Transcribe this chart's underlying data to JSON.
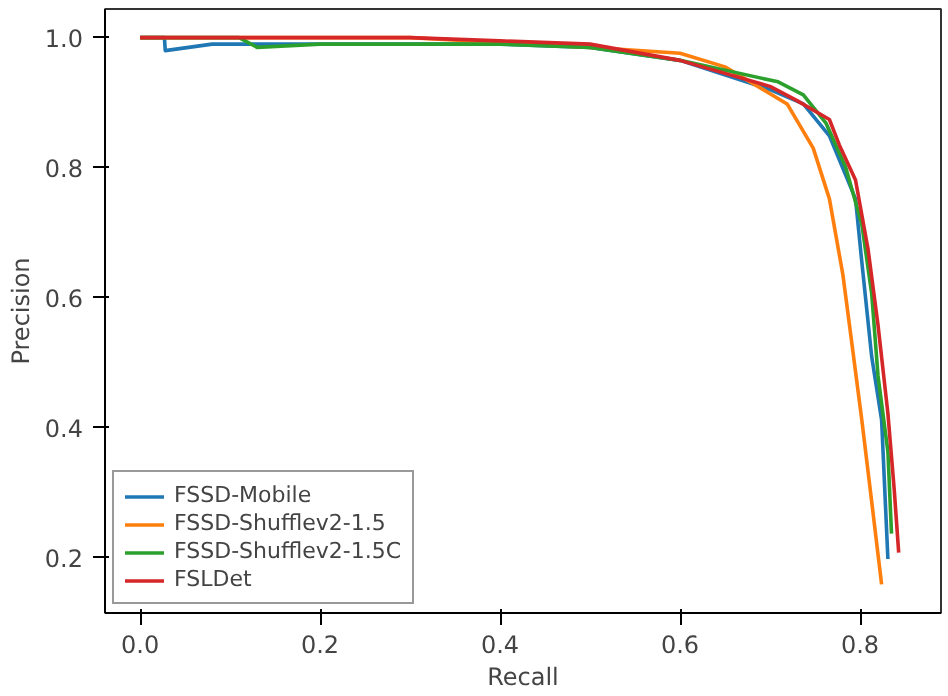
{
  "chart_data": {
    "type": "line",
    "xlabel": "Recall",
    "ylabel": "Precision",
    "xlim": [
      -0.039,
      0.89
    ],
    "ylim": [
      0.115,
      1.044
    ],
    "xticks": [
      {
        "value": 0,
        "label": "0.0"
      },
      0.2,
      0.4,
      0.6,
      0.8
    ],
    "yticks": [
      0.2,
      0.4,
      0.6,
      0.8,
      {
        "value": 1,
        "label": "1.0"
      }
    ],
    "grid": false,
    "legend": "bottom left",
    "line_style": "solid",
    "series": [
      {
        "name": "FSSD-Mobile",
        "color": "#1f77b4",
        "x": [
          0,
          0.027,
          0.028,
          0.08,
          0.1,
          0.2,
          0.4,
          0.5,
          0.6,
          0.7,
          0.737,
          0.766,
          0.795,
          0.802,
          0.813,
          0.824,
          0.831
        ],
        "values": [
          1.0,
          1.0,
          0.98,
          0.99,
          0.99,
          0.99,
          0.99,
          0.985,
          0.965,
          0.92,
          0.898,
          0.849,
          0.752,
          0.655,
          0.509,
          0.412,
          0.198
        ]
      },
      {
        "name": "FSSD-Shufflev2-1.5",
        "color": "#ff7f0e",
        "x": [
          0,
          0.3,
          0.5,
          0.6,
          0.65,
          0.719,
          0.748,
          0.766,
          0.781,
          0.791,
          0.802,
          0.813,
          0.824
        ],
        "values": [
          1.0,
          1.0,
          0.985,
          0.976,
          0.955,
          0.898,
          0.83,
          0.752,
          0.635,
          0.529,
          0.412,
          0.286,
          0.159
        ]
      },
      {
        "name": "FSSD-Shufflev2-1.5C",
        "color": "#2ca02c",
        "x": [
          0,
          0.11,
          0.13,
          0.2,
          0.4,
          0.5,
          0.6,
          0.709,
          0.737,
          0.762,
          0.784,
          0.802,
          0.813,
          0.82,
          0.831,
          0.835
        ],
        "values": [
          1.0,
          1.0,
          0.985,
          0.99,
          0.99,
          0.985,
          0.965,
          0.932,
          0.912,
          0.869,
          0.801,
          0.713,
          0.606,
          0.48,
          0.363,
          0.237
        ]
      },
      {
        "name": "FSLDet",
        "color": "#d62728",
        "x": [
          0,
          0.3,
          0.4,
          0.5,
          0.6,
          0.7,
          0.73,
          0.766,
          0.777,
          0.795,
          0.809,
          0.82,
          0.831,
          0.838,
          0.843
        ],
        "values": [
          1.0,
          1.0,
          0.995,
          0.99,
          0.965,
          0.925,
          0.903,
          0.874,
          0.835,
          0.781,
          0.674,
          0.558,
          0.422,
          0.305,
          0.208
        ]
      }
    ]
  }
}
